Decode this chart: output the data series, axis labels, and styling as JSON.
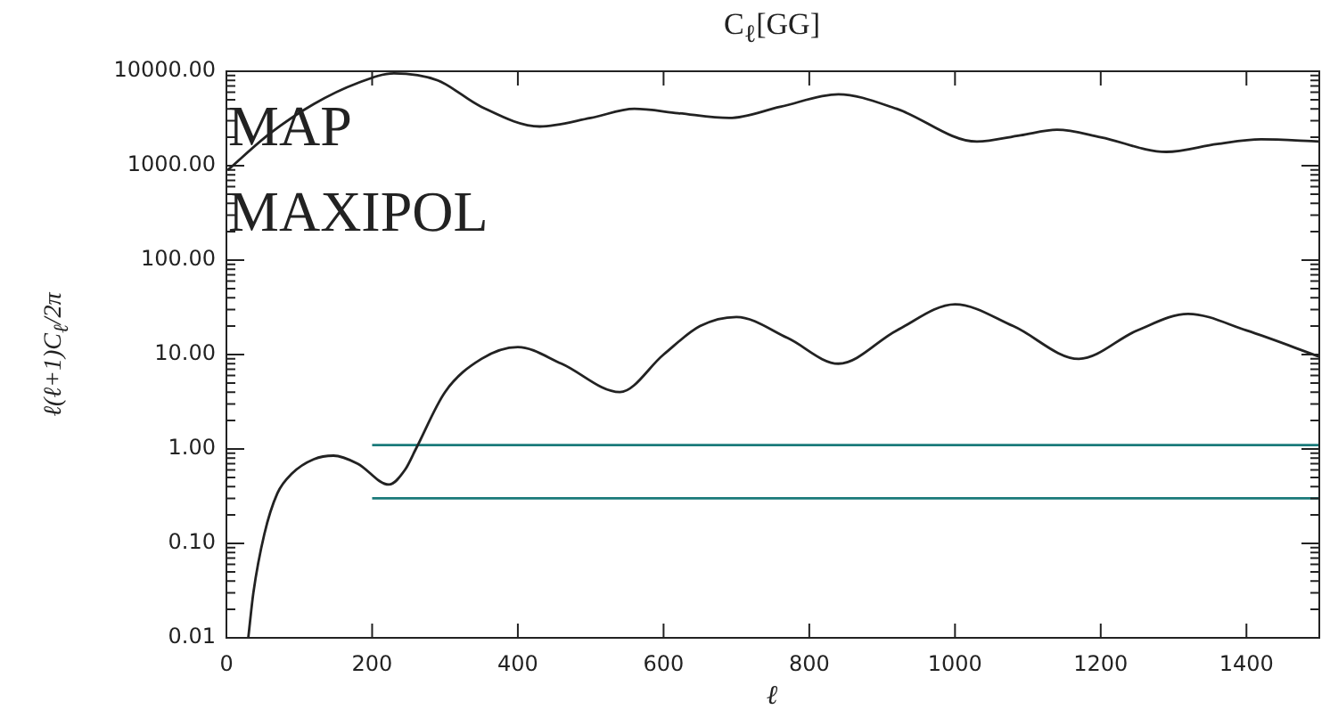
{
  "chart_data": {
    "type": "line",
    "title": "C$_{ℓ}$[GG]",
    "xlabel": "ℓ",
    "ylabel": "ℓ(ℓ+1)C$_{ℓ}$/2π",
    "log": "y",
    "grid": false,
    "legend": false,
    "marker": "none",
    "line_style": "solid",
    "xlim": [
      0,
      1500
    ],
    "xticks": [
      0,
      200,
      400,
      600,
      800,
      1000,
      1200,
      1400
    ],
    "ylim": [
      0.01,
      10000
    ],
    "yticks": [
      {
        "value": 0.01,
        "label": "0.01"
      },
      {
        "value": 0.1,
        "label": "0.10"
      },
      {
        "value": 1,
        "label": "1.00"
      },
      {
        "value": 10,
        "label": "10.00"
      },
      {
        "value": 100,
        "label": "100.00"
      },
      {
        "value": 1000,
        "label": "1000.00"
      },
      {
        "value": 10000,
        "label": "10000.00"
      }
    ],
    "annotations": [
      "MAP",
      "MAXIPOL"
    ],
    "series": [
      {
        "color": "#222222",
        "x": [
          2,
          60,
          120,
          180,
          230,
          290,
          350,
          430,
          500,
          560,
          620,
          690,
          760,
          840,
          920,
          1030,
          1090,
          1140,
          1200,
          1290,
          1360,
          1420,
          1500
        ],
        "values": [
          900,
          2200,
          4500,
          7500,
          9500,
          8000,
          4200,
          2600,
          3200,
          4000,
          3600,
          3200,
          4200,
          5700,
          4000,
          1800,
          2100,
          2400,
          2000,
          1400,
          1700,
          1900,
          1800
        ]
      },
      {
        "color": "#222222",
        "x": [
          30,
          37,
          52,
          70,
          90,
          120,
          147,
          180,
          223,
          245,
          260,
          300,
          350,
          400,
          460,
          540,
          600,
          650,
          700,
          770,
          840,
          920,
          1000,
          1080,
          1170,
          1250,
          1320,
          1400,
          1500
        ],
        "values": [
          0.01,
          0.03,
          0.125,
          0.34,
          0.55,
          0.78,
          0.85,
          0.7,
          0.42,
          0.6,
          1,
          4,
          9,
          12,
          8,
          4,
          10,
          20,
          25,
          15,
          8,
          18,
          34,
          20,
          9,
          18,
          27,
          18,
          9.5
        ]
      },
      {
        "color": "#1a7a7a",
        "x": [
          200,
          1500
        ],
        "values": [
          1.1,
          1.1
        ]
      },
      {
        "color": "#1a7a7a",
        "x": [
          200,
          1500
        ],
        "values": [
          0.3,
          0.3
        ]
      }
    ]
  }
}
